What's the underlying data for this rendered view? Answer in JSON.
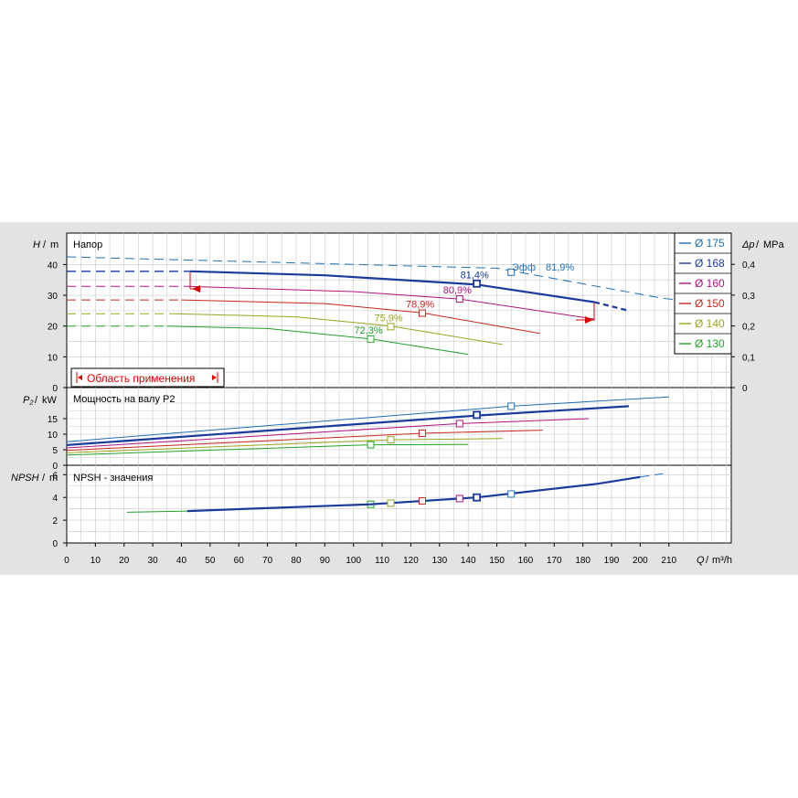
{
  "chart_data": [
    {
      "type": "line",
      "panel": "head",
      "title": "Напор",
      "ylabel_sym": "H",
      "ylabel_unit": "m",
      "ylim": [
        0,
        45
      ],
      "yticks": [
        "0",
        "10",
        "20",
        "30",
        "40"
      ],
      "xlim": [
        0,
        220
      ],
      "y2label_sym": "Δp",
      "y2label_unit": "MPa",
      "y2ticks": [
        "0",
        "0,1",
        "0,2",
        "0,3",
        "0,4"
      ],
      "eff_label": "Эфф",
      "eff_value_top": "81,9%",
      "application_range_label": "Область применения",
      "series": [
        {
          "name": "Ø 175",
          "color": "#1e6fb5",
          "eff": "",
          "dashed": [
            [
              0,
              42.5
            ],
            [
              150,
              38.8
            ],
            [
              208,
              29.0
            ],
            [
              225,
              27.3
            ]
          ],
          "solid": [],
          "bep": [
            155,
            37.5
          ]
        },
        {
          "name": "Ø 168",
          "color": "#1a3a9c",
          "eff": "81,4%",
          "dashed": [
            [
              0,
              37.8
            ],
            [
              45,
              37.8
            ]
          ],
          "solid": [
            [
              43,
              37.8
            ],
            [
              90,
              36.5
            ],
            [
              143,
              33.5
            ],
            [
              184,
              27.8
            ]
          ],
          "tail": [
            [
              184,
              27.8
            ],
            [
              196,
              25
            ]
          ],
          "bep": [
            143,
            33.8
          ]
        },
        {
          "name": "Ø 160",
          "color": "#b0137e",
          "eff": "80,9%",
          "dashed": [
            [
              0,
              32.9
            ],
            [
              42,
              32.9
            ]
          ],
          "solid": [
            [
              42,
              32.9
            ],
            [
              100,
              31.2
            ],
            [
              137,
              28.8
            ],
            [
              184,
              22.3
            ]
          ],
          "bep": [
            137,
            28.8
          ]
        },
        {
          "name": "Ø 150",
          "color": "#c8261f",
          "eff": "78,9%",
          "dashed": [
            [
              0,
              28.5
            ],
            [
              40,
              28.5
            ]
          ],
          "solid": [
            [
              40,
              28.5
            ],
            [
              90,
              27.3
            ],
            [
              124,
              24.3
            ],
            [
              165,
              17.6
            ]
          ],
          "bep": [
            124,
            24.2
          ]
        },
        {
          "name": "Ø 140",
          "color": "#9aa51d",
          "eff": "75,9%",
          "dashed": [
            [
              0,
              24.0
            ],
            [
              38,
              24.0
            ]
          ],
          "solid": [
            [
              38,
              24.0
            ],
            [
              80,
              23.0
            ],
            [
              113,
              20.0
            ],
            [
              152,
              14.0
            ]
          ],
          "bep": [
            113,
            19.8
          ]
        },
        {
          "name": "Ø 130",
          "color": "#22a22a",
          "eff": "72,3%",
          "dashed": [
            [
              0,
              20.0
            ],
            [
              35,
              20.0
            ]
          ],
          "solid": [
            [
              35,
              20.0
            ],
            [
              70,
              19.2
            ],
            [
              106,
              15.8
            ],
            [
              140,
              10.8
            ]
          ],
          "bep": [
            106,
            15.8
          ]
        }
      ]
    },
    {
      "type": "line",
      "panel": "power",
      "title": "Мощность на валу P2",
      "ylabel_sym": "P₂",
      "ylabel_unit": "kW",
      "ylim": [
        0,
        21
      ],
      "yticks": [
        "0",
        "5",
        "10",
        "15"
      ],
      "series": [
        {
          "name": "Ø 175",
          "color": "#1e6fb5",
          "dashed": [],
          "solid": [
            [
              0,
              7.6
            ],
            [
              155,
              19.0
            ],
            [
              210,
              22.0
            ]
          ],
          "bep": [
            155,
            19.0
          ]
        },
        {
          "name": "Ø 168",
          "color": "#1a3a9c",
          "solid": [
            [
              0,
              6.5
            ],
            [
              143,
              16.0
            ],
            [
              196,
              19.0
            ]
          ],
          "bep": [
            143,
            16.2
          ]
        },
        {
          "name": "Ø 160",
          "color": "#b0137e",
          "solid": [
            [
              0,
              5.6
            ],
            [
              137,
              13.4
            ],
            [
              182,
              15.0
            ]
          ],
          "bep": [
            137,
            13.4
          ]
        },
        {
          "name": "Ø 150",
          "color": "#c8261f",
          "solid": [
            [
              0,
              4.8
            ],
            [
              124,
              10.3
            ],
            [
              166,
              11.3
            ]
          ],
          "bep": [
            124,
            10.3
          ]
        },
        {
          "name": "Ø 140",
          "color": "#9aa51d",
          "solid": [
            [
              0,
              4.0
            ],
            [
              113,
              8.2
            ],
            [
              152,
              8.6
            ]
          ],
          "bep": [
            113,
            8.2
          ]
        },
        {
          "name": "Ø 130",
          "color": "#22a22a",
          "solid": [
            [
              0,
              3.3
            ],
            [
              106,
              6.6
            ],
            [
              140,
              6.7
            ]
          ],
          "bep": [
            106,
            6.6
          ]
        }
      ]
    },
    {
      "type": "line",
      "panel": "npsh",
      "title": "NPSH - значения",
      "ylabel_sym": "NPSH",
      "ylabel_unit": "m",
      "ylim": [
        0,
        7
      ],
      "yticks": [
        "0",
        "2",
        "4",
        "6"
      ],
      "xlabel_sym": "Q",
      "xlabel_unit": "m³/h",
      "xticks": [
        "0",
        "10",
        "20",
        "30",
        "40",
        "50",
        "60",
        "70",
        "80",
        "90",
        "100",
        "110",
        "120",
        "130",
        "140",
        "150",
        "160",
        "170",
        "180",
        "190",
        "200",
        "210"
      ],
      "series": [
        {
          "name": "Ø 130",
          "color": "#22a22a",
          "solid": [
            [
              21,
              2.7
            ],
            [
              42,
              2.8
            ]
          ],
          "bep": [
            106,
            3.4
          ]
        },
        {
          "name": "Ø 168",
          "color": "#1a3a9c",
          "solid": [
            [
              42,
              2.8
            ],
            [
              106,
              3.4
            ],
            [
              143,
              4.0
            ],
            [
              185,
              5.2
            ],
            [
              200,
              5.8
            ]
          ],
          "bep": [
            143,
            4.0
          ]
        },
        {
          "name": "Ø 175",
          "color": "#1e6fb5",
          "dashed": [
            [
              200,
              5.8
            ],
            [
              208,
              6.1
            ]
          ],
          "bep": [
            155,
            4.3
          ]
        },
        {
          "name": "Ø 160",
          "color": "#b0137e",
          "bep": [
            137,
            3.9
          ]
        },
        {
          "name": "Ø 150",
          "color": "#c8261f",
          "bep": [
            124,
            3.7
          ]
        },
        {
          "name": "Ø 140",
          "color": "#9aa51d",
          "bep": [
            113,
            3.5
          ]
        }
      ]
    }
  ],
  "legend": [
    {
      "label": "Ø 175",
      "color": "#1e6fb5"
    },
    {
      "label": "Ø 168",
      "color": "#1a3a9c"
    },
    {
      "label": "Ø 160",
      "color": "#b0137e"
    },
    {
      "label": "Ø 150",
      "color": "#c8261f"
    },
    {
      "label": "Ø 140",
      "color": "#9aa51d"
    },
    {
      "label": "Ø 130",
      "color": "#22a22a"
    }
  ]
}
